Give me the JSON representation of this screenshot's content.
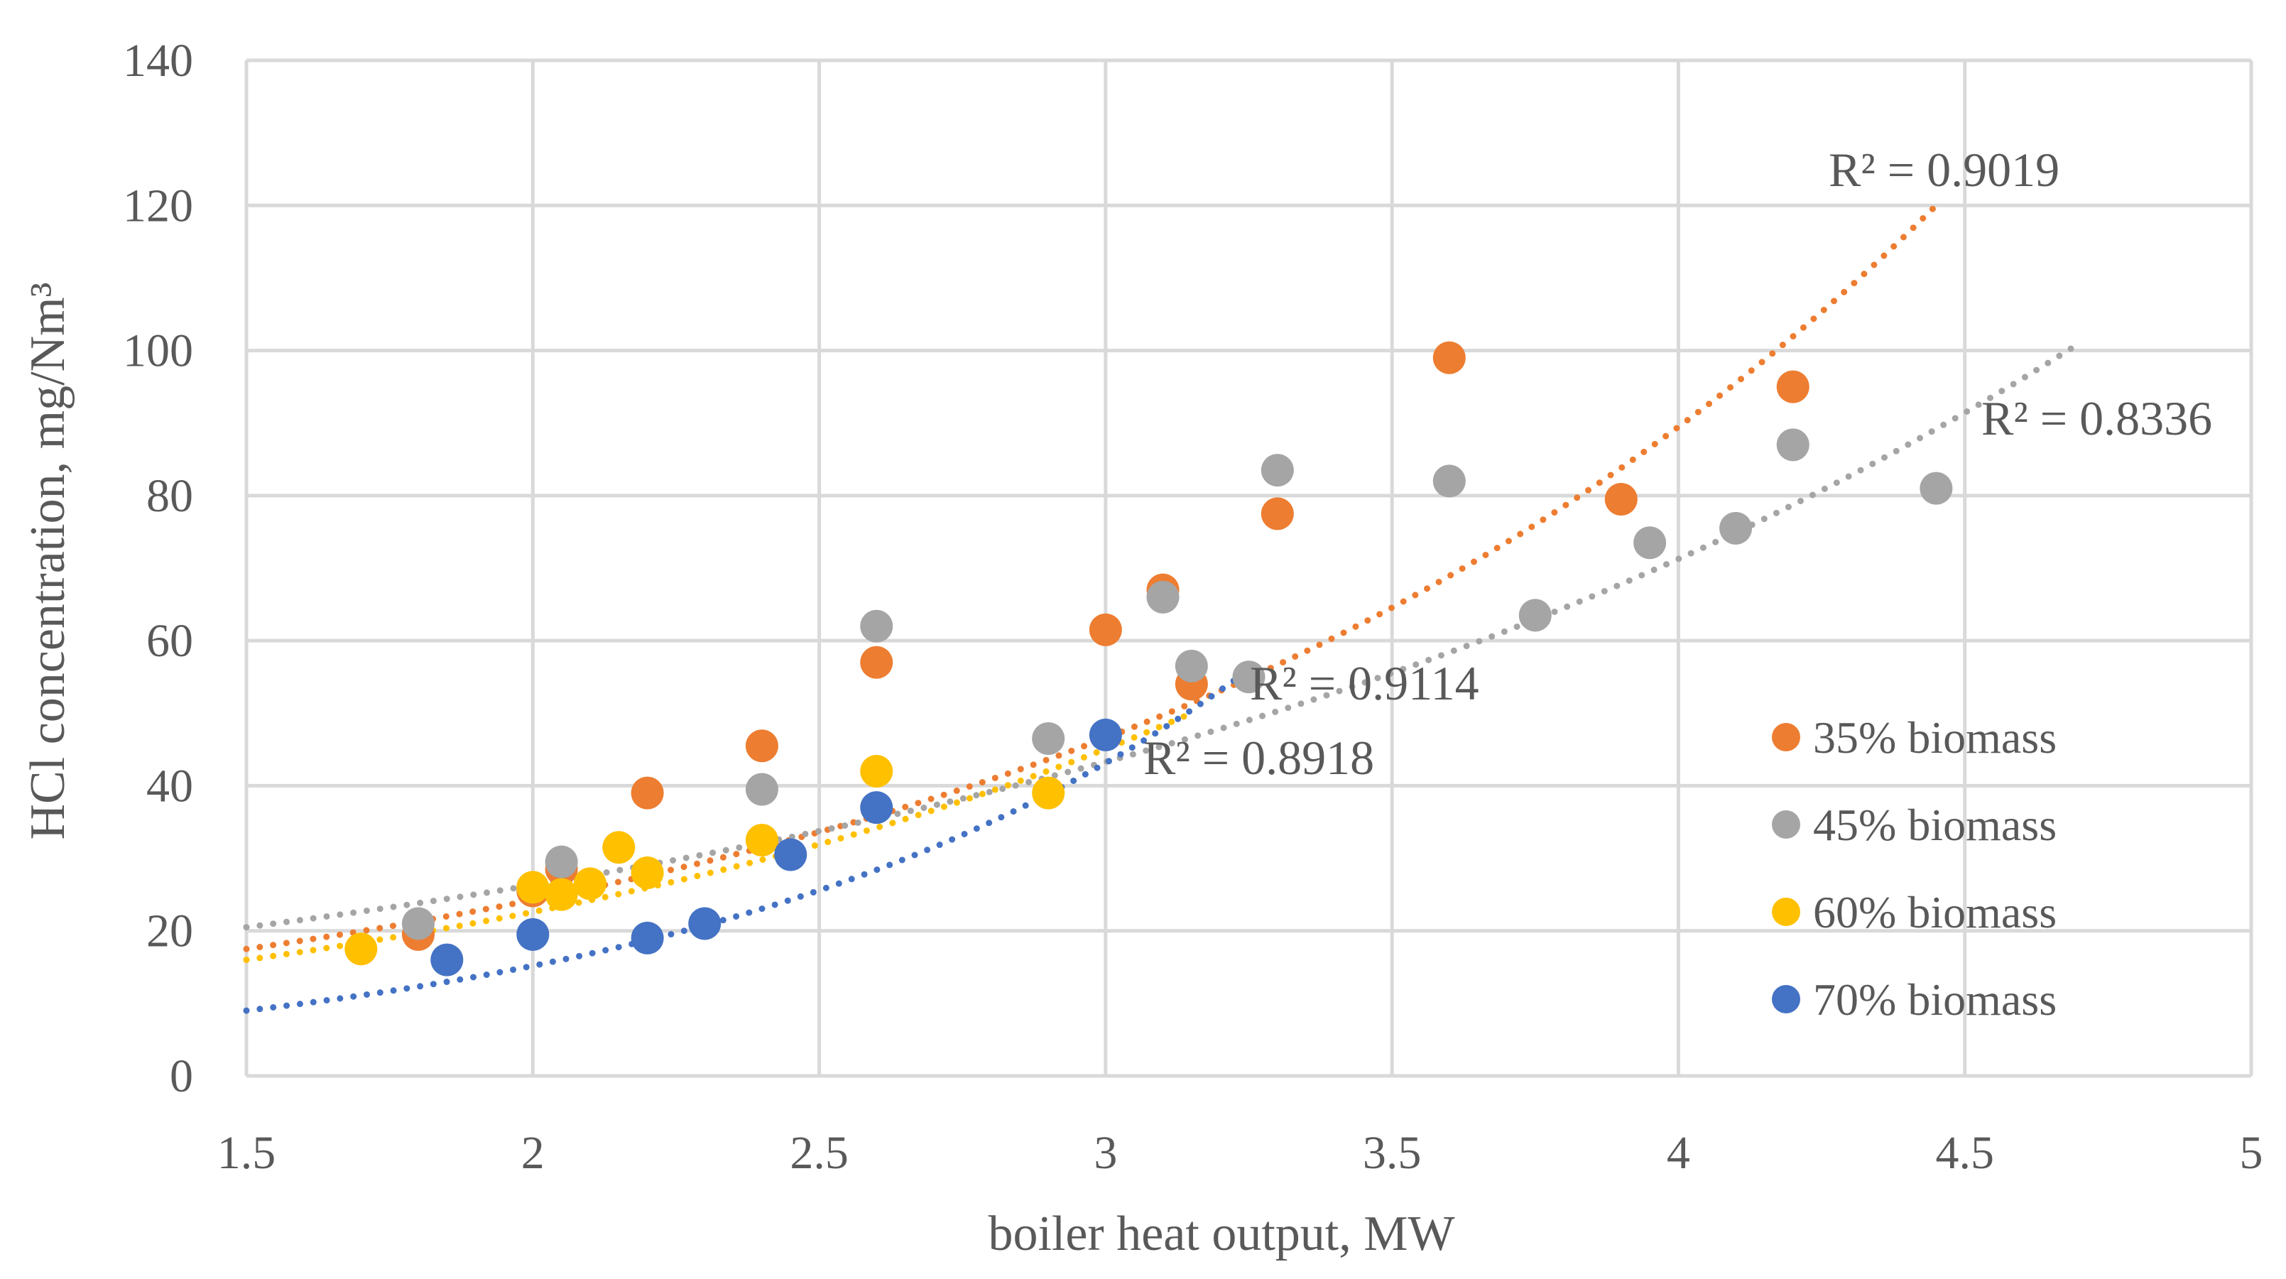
{
  "chart_data": {
    "type": "scatter",
    "title": "",
    "xlabel": "boiler heat output, MW",
    "ylabel": "HCl concentration, mg/Nm³",
    "xlim": [
      1.5,
      5
    ],
    "ylim": [
      0,
      140
    ],
    "x_ticks": [
      1.5,
      2,
      2.5,
      3,
      3.5,
      4,
      4.5,
      5
    ],
    "x_tick_labels": [
      "1.5",
      "2",
      "2.5",
      "3",
      "3.5",
      "4",
      "4.5",
      "5"
    ],
    "y_ticks": [
      0,
      20,
      40,
      60,
      80,
      100,
      120,
      140
    ],
    "y_tick_labels": [
      "0",
      "20",
      "40",
      "60",
      "80",
      "100",
      "120",
      "140"
    ],
    "grid": true,
    "legend_position": "right",
    "series": [
      {
        "name": "35% biomass",
        "color": "#ed7d31",
        "points": [
          [
            1.8,
            19.5
          ],
          [
            2.0,
            25.5
          ],
          [
            2.05,
            28.5
          ],
          [
            2.2,
            39
          ],
          [
            2.4,
            45.5
          ],
          [
            2.6,
            57
          ],
          [
            3.0,
            61.5
          ],
          [
            3.1,
            67
          ],
          [
            3.15,
            54
          ],
          [
            3.3,
            77.5
          ],
          [
            3.6,
            99
          ],
          [
            3.9,
            79.5
          ],
          [
            4.2,
            95
          ]
        ],
        "trendline": {
          "type": "exponential",
          "r2_label": "R² = 0.9019",
          "x_range": [
            1.5,
            4.45
          ],
          "y_range": [
            17.5,
            120
          ]
        }
      },
      {
        "name": "45% biomass",
        "color": "#a5a5a5",
        "points": [
          [
            1.8,
            21
          ],
          [
            2.05,
            29.5
          ],
          [
            2.4,
            39.5
          ],
          [
            2.6,
            62
          ],
          [
            2.9,
            46.5
          ],
          [
            3.1,
            66
          ],
          [
            3.15,
            56.5
          ],
          [
            3.25,
            55
          ],
          [
            3.3,
            83.5
          ],
          [
            3.6,
            82
          ],
          [
            3.75,
            63.5
          ],
          [
            3.95,
            73.5
          ],
          [
            4.1,
            75.5
          ],
          [
            4.2,
            87
          ],
          [
            4.45,
            81
          ]
        ],
        "trendline": {
          "type": "exponential",
          "r2_label": "R² = 0.8336",
          "x_range": [
            1.5,
            4.7
          ],
          "y_range": [
            20.5,
            101
          ]
        }
      },
      {
        "name": "60% biomass",
        "color": "#ffc000",
        "points": [
          [
            1.7,
            17.5
          ],
          [
            2.0,
            26
          ],
          [
            2.05,
            25
          ],
          [
            2.1,
            26.5
          ],
          [
            2.15,
            31.5
          ],
          [
            2.2,
            28
          ],
          [
            2.4,
            32.5
          ],
          [
            2.6,
            42
          ],
          [
            2.9,
            39
          ]
        ],
        "trendline": {
          "type": "exponential",
          "r2_label": "R² = 0.8918",
          "x_range": [
            1.5,
            3.15
          ],
          "y_range": [
            16,
            50
          ]
        }
      },
      {
        "name": "70% biomass",
        "color": "#4472c4",
        "points": [
          [
            1.85,
            16
          ],
          [
            2.0,
            19.5
          ],
          [
            2.2,
            19
          ],
          [
            2.3,
            21
          ],
          [
            2.45,
            30.5
          ],
          [
            2.6,
            37
          ],
          [
            3.0,
            47
          ]
        ],
        "trendline": {
          "type": "exponential",
          "r2_label": "R² = 0.9114",
          "x_range": [
            1.5,
            3.25
          ],
          "y_range": [
            9,
            56
          ]
        }
      }
    ]
  }
}
